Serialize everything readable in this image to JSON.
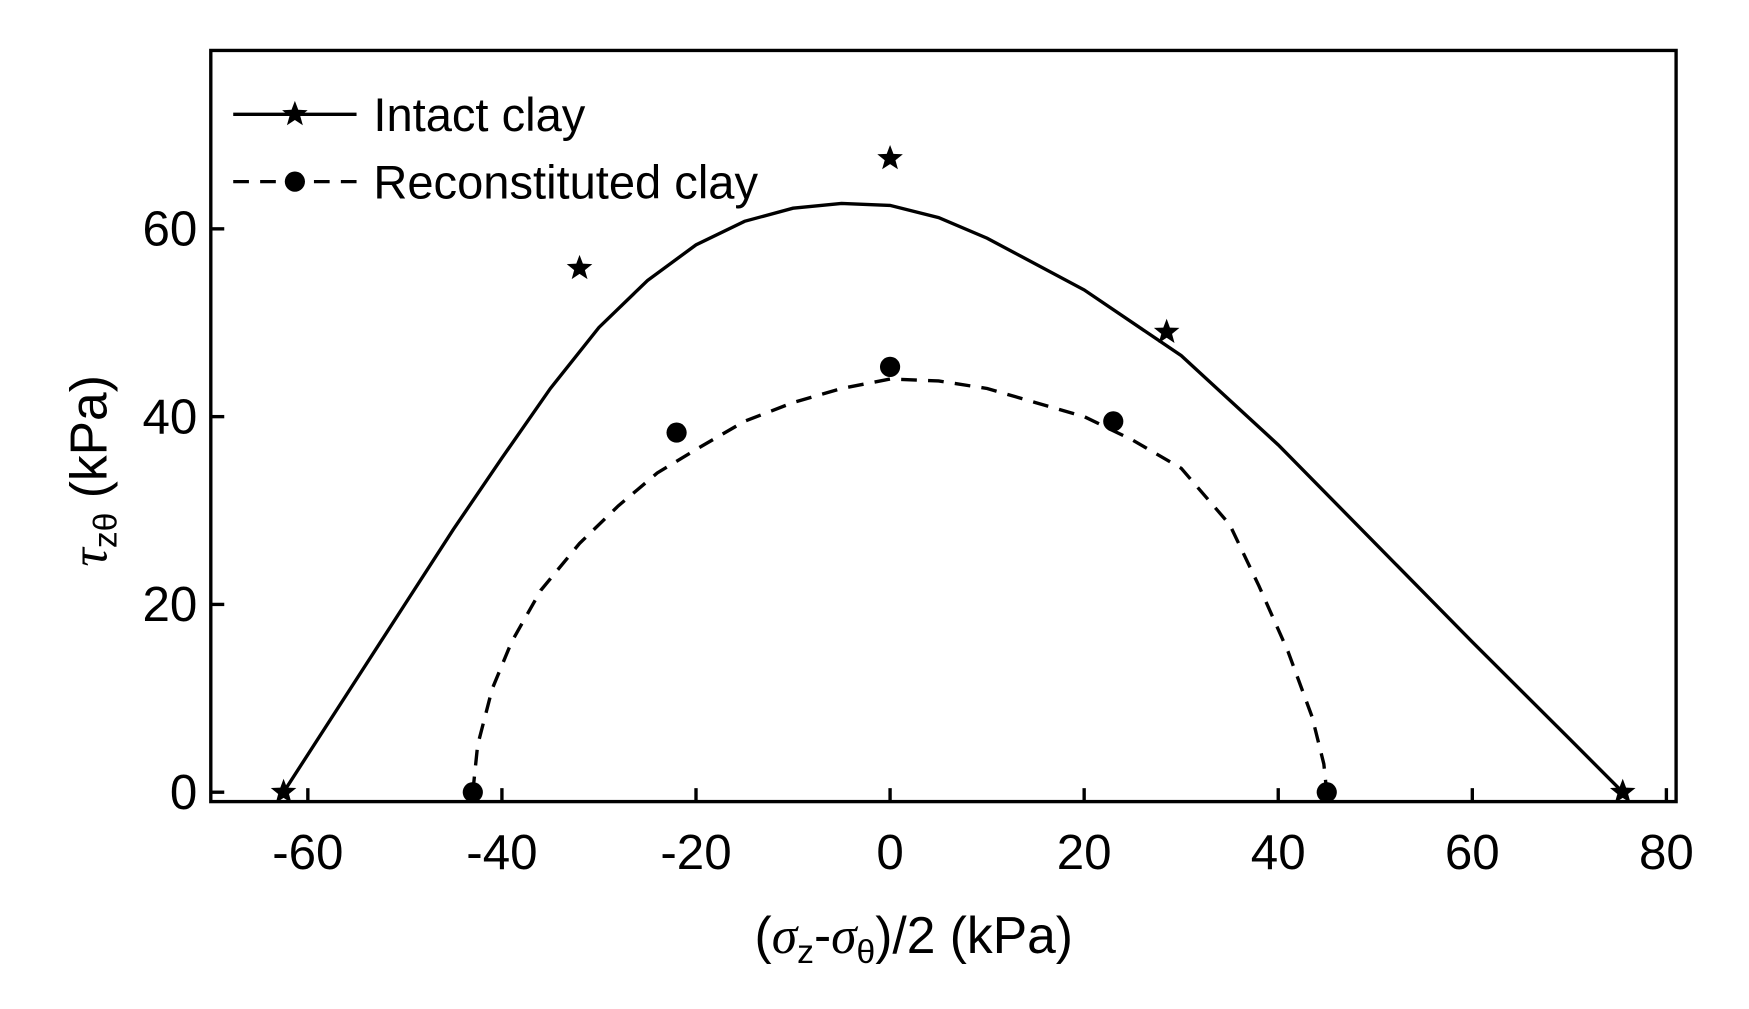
{
  "chart_data": {
    "type": "scatter-line",
    "xlabel": [
      {
        "text": "(",
        "style": "normal"
      },
      {
        "text": "σ",
        "style": "greek"
      },
      {
        "text": "z",
        "style": "sub"
      },
      {
        "text": "-",
        "style": "normal"
      },
      {
        "text": "σ",
        "style": "greek"
      },
      {
        "text": "θ",
        "style": "sub"
      },
      {
        "text": ")/2 (kPa)",
        "style": "normal"
      }
    ],
    "ylabel": [
      {
        "text": "τ",
        "style": "greek"
      },
      {
        "text": "zθ",
        "style": "sub"
      },
      {
        "text": " (kPa)",
        "style": "normal"
      }
    ],
    "xlim": [
      -70,
      81
    ],
    "ylim": [
      -1,
      79
    ],
    "xticks": [
      -60,
      -40,
      -20,
      0,
      20,
      40,
      60,
      80
    ],
    "yticks": [
      0,
      20,
      40,
      60
    ],
    "legend": "upper left",
    "series": [
      {
        "name": "Intact clay",
        "color": "#000000",
        "line": "solid",
        "marker": "star",
        "x": [
          -62.5,
          -32,
          0,
          28.5,
          75.5
        ],
        "values": [
          0,
          55.8,
          67.5,
          49,
          0
        ],
        "curve": {
          "x": [
            -62.5,
            -55,
            -50,
            -45,
            -40,
            -35,
            -30,
            -25,
            -20,
            -15,
            -10,
            -5,
            0,
            5,
            10,
            20,
            30,
            40,
            50,
            60,
            70,
            75.5
          ],
          "values": [
            0,
            12,
            20,
            28,
            35.6,
            43,
            49.5,
            54.5,
            58.3,
            60.8,
            62.2,
            62.7,
            62.5,
            61.2,
            59,
            53.5,
            46.5,
            37,
            26.5,
            16,
            5.7,
            0
          ]
        }
      },
      {
        "name": "Reconstituted clay",
        "color": "#000000",
        "line": "dashed",
        "marker": "circle",
        "x": [
          -43,
          -22,
          0,
          23,
          45
        ],
        "values": [
          0,
          38.3,
          45.3,
          39.5,
          0
        ],
        "curve": {
          "x": [
            -43,
            -42.5,
            -41,
            -39,
            -36,
            -32,
            -28,
            -24,
            -20,
            -15,
            -10,
            -5,
            0,
            5,
            10,
            15,
            20,
            25,
            30,
            35,
            38,
            41,
            43.5,
            44.7,
            45
          ],
          "values": [
            0,
            5,
            11,
            16,
            21.5,
            26.5,
            30.5,
            34,
            36.5,
            39.5,
            41.5,
            43,
            44,
            43.8,
            43,
            41.5,
            40,
            37.5,
            34.5,
            28.5,
            22,
            15,
            8,
            3,
            0
          ]
        }
      }
    ]
  }
}
